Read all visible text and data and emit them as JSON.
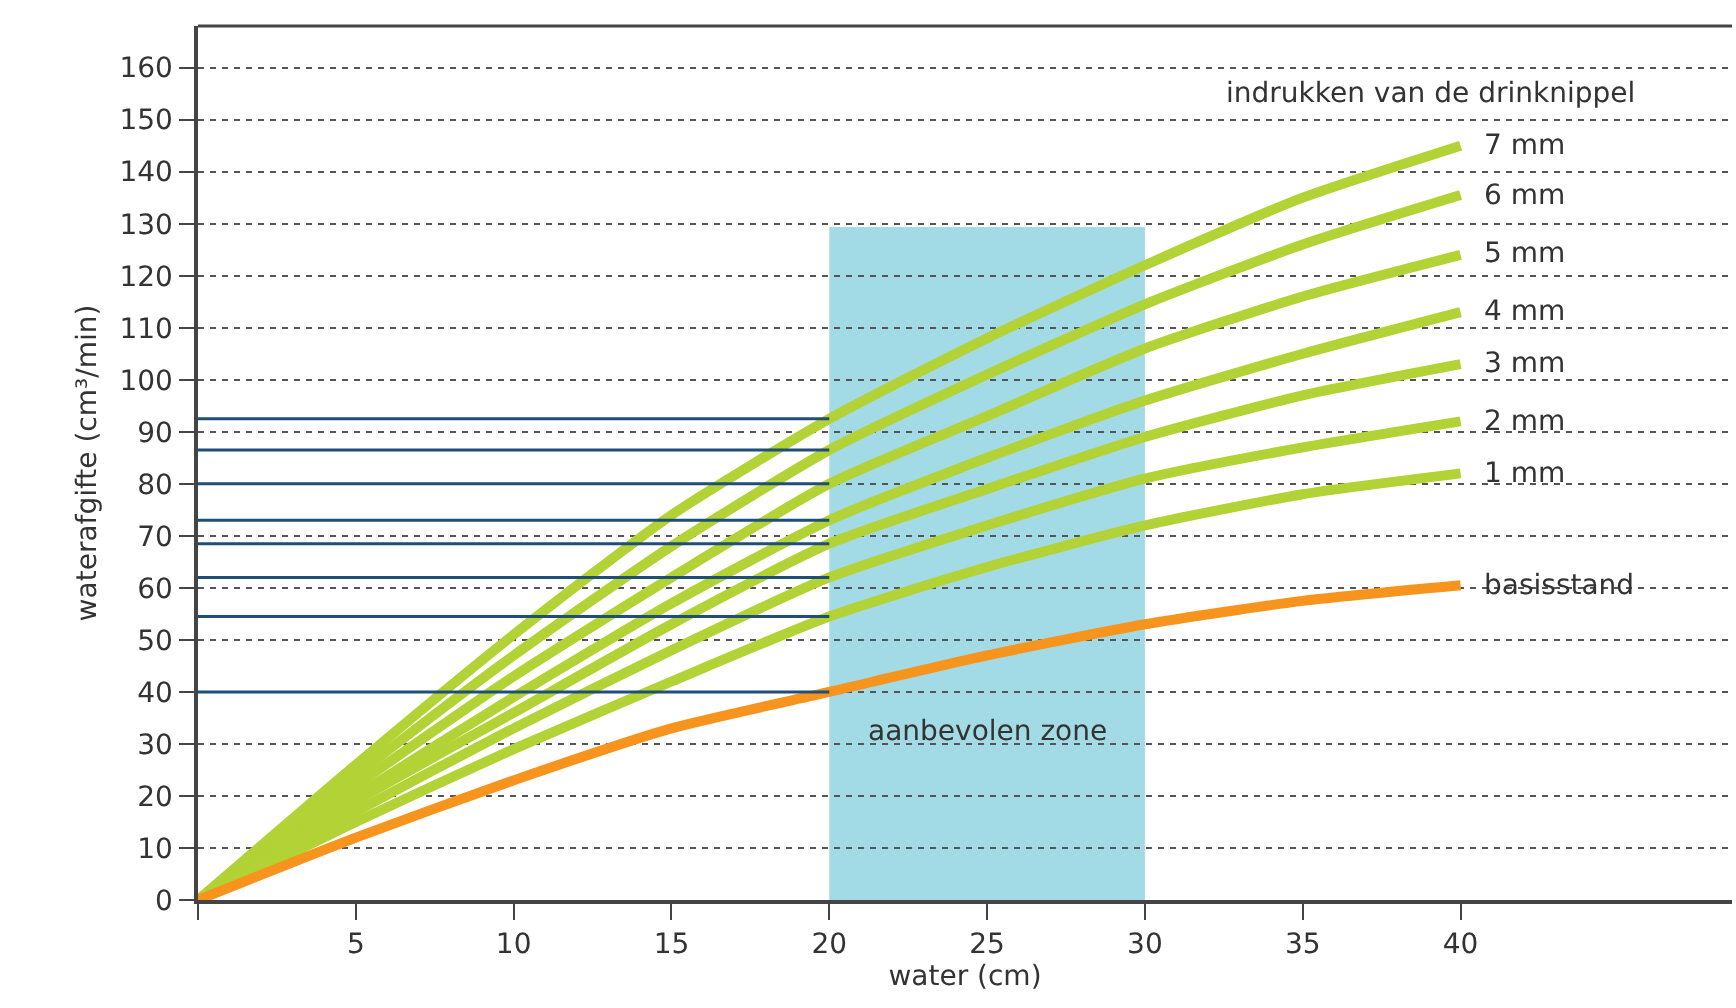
{
  "chart_data": {
    "type": "line",
    "xlabel": "water (cm)",
    "ylabel": "waterafgifte (cm³/min)",
    "legend_title": "indrukken van de drinknippel",
    "x": [
      0,
      5,
      10,
      15,
      20,
      25,
      30,
      35,
      40
    ],
    "series": [
      {
        "name": "7 mm",
        "color": "#b2d235",
        "values": [
          0,
          26,
          51,
          74,
          92.5,
          108,
          122,
          135,
          145
        ]
      },
      {
        "name": "6 mm",
        "color": "#b2d235",
        "values": [
          0,
          24,
          47,
          68,
          86.5,
          101,
          114.5,
          126,
          135.5
        ]
      },
      {
        "name": "5 mm",
        "color": "#b2d235",
        "values": [
          0,
          22,
          43,
          62,
          80,
          93,
          106,
          116,
          124
        ]
      },
      {
        "name": "4 mm",
        "color": "#b2d235",
        "values": [
          0,
          20,
          39,
          57,
          73,
          85,
          96,
          105,
          113
        ]
      },
      {
        "name": "3 mm",
        "color": "#b2d235",
        "values": [
          0,
          19,
          36,
          53,
          68.5,
          79,
          89,
          97,
          103
        ]
      },
      {
        "name": "2 mm",
        "color": "#b2d235",
        "values": [
          0,
          17,
          33,
          48,
          62,
          72,
          81,
          87,
          92
        ]
      },
      {
        "name": "1 mm",
        "color": "#b2d235",
        "values": [
          0,
          15,
          29,
          42,
          54.5,
          64,
          72,
          78,
          82
        ]
      },
      {
        "name": "basisstand",
        "color": "#f7941d",
        "values": [
          0,
          12,
          23,
          33,
          40,
          47,
          53,
          57.5,
          60.5
        ]
      },
      {
        "color": "#1f4e79",
        "values": [
          92.5,
          92.5,
          92.5,
          92.5,
          92.5,
          null,
          null,
          null,
          null
        ]
      },
      {
        "color": "#1f4e79",
        "values": [
          86.5,
          86.5,
          86.5,
          86.5,
          86.5,
          null,
          null,
          null,
          null
        ]
      },
      {
        "color": "#1f4e79",
        "values": [
          80,
          80,
          80,
          80,
          80,
          null,
          null,
          null,
          null
        ]
      },
      {
        "color": "#1f4e79",
        "values": [
          73,
          73,
          73,
          73,
          73,
          null,
          null,
          null,
          null
        ]
      },
      {
        "color": "#1f4e79",
        "values": [
          68.5,
          68.5,
          68.5,
          68.5,
          68.5,
          null,
          null,
          null,
          null
        ]
      },
      {
        "color": "#1f4e79",
        "values": [
          62,
          62,
          62,
          62,
          62,
          null,
          null,
          null,
          null
        ]
      },
      {
        "color": "#1f4e79",
        "values": [
          54.5,
          54.5,
          54.5,
          54.5,
          54.5,
          null,
          null,
          null,
          null
        ]
      },
      {
        "color": "#1f4e79",
        "values": [
          40,
          40,
          40,
          40,
          40,
          null,
          null,
          null,
          null
        ]
      }
    ],
    "bands": [
      {
        "axis": "x",
        "from": 20,
        "to": 30,
        "label": "aanbevolen zone",
        "color": "#a2dae5"
      }
    ],
    "xlim": [
      0,
      48.6
    ],
    "ylim": [
      0,
      168
    ],
    "xticks": [
      {
        "value": 0,
        "label": null
      },
      5,
      10,
      15,
      20,
      25,
      30,
      35,
      40
    ],
    "yticks": [
      0,
      10,
      20,
      30,
      40,
      50,
      60,
      70,
      80,
      90,
      100,
      110,
      120,
      130,
      140,
      150,
      160
    ],
    "grid": "y",
    "marker": "none",
    "line_style": "solid"
  }
}
